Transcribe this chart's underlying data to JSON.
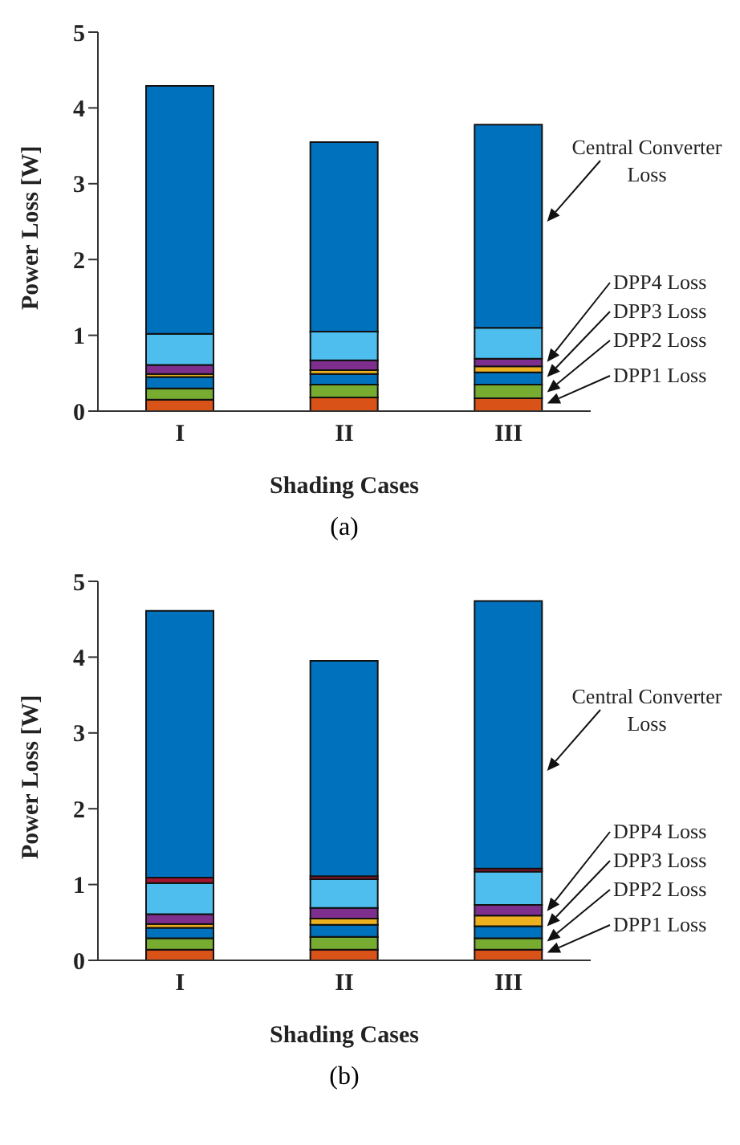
{
  "chart_data": [
    {
      "type": "bar",
      "stacked": true,
      "xlabel": "Shading Cases",
      "ylabel": "Power Loss [W]",
      "categories": [
        "I",
        "II",
        "III"
      ],
      "ylim": [
        0,
        5
      ],
      "yticks": [
        0,
        1,
        2,
        3,
        4,
        5
      ],
      "legend": false,
      "grid": false,
      "series": [
        {
          "color": "#d95319",
          "values": [
            0.15,
            0.18,
            0.17
          ]
        },
        {
          "color": "#77ac30",
          "values": [
            0.15,
            0.17,
            0.18
          ]
        },
        {
          "color": "#0072bd",
          "values": [
            0.15,
            0.14,
            0.16
          ]
        },
        {
          "color": "#edb120",
          "values": [
            0.04,
            0.05,
            0.08
          ]
        },
        {
          "color": "#7e2f8e",
          "values": [
            0.12,
            0.13,
            0.1
          ]
        },
        {
          "color": "#4dbeee",
          "values": [
            0.41,
            0.38,
            0.41
          ]
        },
        {
          "color": "#0072bd",
          "values": [
            3.27,
            2.5,
            2.68
          ]
        }
      ],
      "annotations": [
        "Central Converter Loss",
        "DPP4 Loss",
        "DPP3 Loss",
        "DPP2 Loss",
        "DPP1 Loss",
        "(a)"
      ]
    },
    {
      "type": "bar",
      "stacked": true,
      "xlabel": "Shading Cases",
      "ylabel": "Power Loss [W]",
      "categories": [
        "I",
        "II",
        "III"
      ],
      "ylim": [
        0,
        5
      ],
      "yticks": [
        0,
        1,
        2,
        3,
        4,
        5
      ],
      "legend": false,
      "grid": false,
      "series": [
        {
          "color": "#d95319",
          "values": [
            0.14,
            0.14,
            0.14
          ]
        },
        {
          "color": "#77ac30",
          "values": [
            0.15,
            0.17,
            0.15
          ]
        },
        {
          "color": "#0072bd",
          "values": [
            0.14,
            0.16,
            0.16
          ]
        },
        {
          "color": "#edb120",
          "values": [
            0.05,
            0.08,
            0.14
          ]
        },
        {
          "color": "#7e2f8e",
          "values": [
            0.13,
            0.14,
            0.14
          ]
        },
        {
          "color": "#4dbeee",
          "values": [
            0.41,
            0.38,
            0.44
          ]
        },
        {
          "color": "#a2142f",
          "values": [
            0.07,
            0.04,
            0.04
          ]
        },
        {
          "color": "#0072bd",
          "values": [
            3.52,
            2.84,
            3.53
          ]
        }
      ],
      "annotations": [
        "Central Converter Loss",
        "DPP4 Loss",
        "DPP3 Loss",
        "DPP2 Loss",
        "DPP1 Loss",
        "(b)"
      ]
    }
  ]
}
